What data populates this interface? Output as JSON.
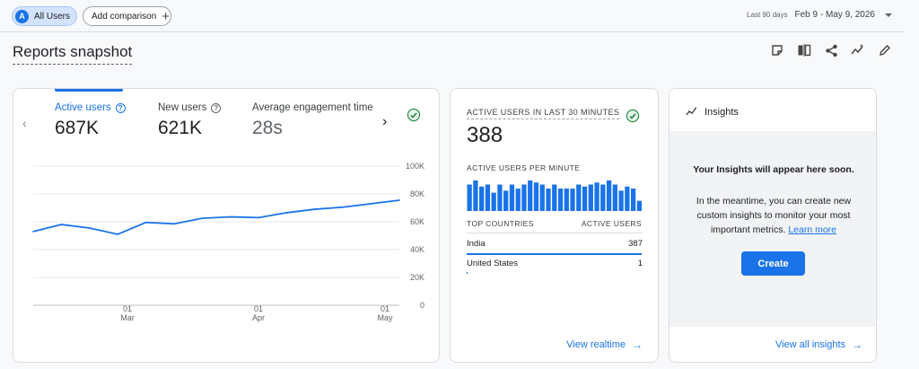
{
  "header": {
    "segment_avatar": "A",
    "segment_label": "All Users",
    "add_comparison": "Add comparison",
    "date_range_label": "Last 90 days",
    "date_range_value": "Feb 9 - May 9, 2026"
  },
  "page_title": "Reports snapshot",
  "toolbar_icons": [
    "annotation-icon",
    "compare-icon",
    "share-icon",
    "insights-icon",
    "edit-icon"
  ],
  "metrics": [
    {
      "label": "Active users",
      "value": "687K"
    },
    {
      "label": "New users",
      "value": "621K"
    },
    {
      "label": "Average engagement time p",
      "value": "28s"
    }
  ],
  "help_glyph": "?",
  "chart_data": {
    "type": "line",
    "x": [
      0,
      1,
      2,
      3,
      4,
      5,
      6,
      7,
      8,
      9,
      10,
      11,
      12,
      13
    ],
    "values": [
      53000,
      58000,
      55500,
      51000,
      59500,
      58500,
      62500,
      63500,
      63000,
      66500,
      69000,
      70500,
      73000,
      75500
    ],
    "ylim": [
      0,
      100000
    ],
    "yticks": [
      "100K",
      "80K",
      "60K",
      "40K",
      "20K",
      "0"
    ],
    "xticks": [
      {
        "day": "01",
        "month": "Mar"
      },
      {
        "day": "01",
        "month": "Apr"
      },
      {
        "day": "01",
        "month": "May"
      }
    ],
    "line_color": "#1a73e8",
    "grid": true
  },
  "realtime": {
    "title": "ACTIVE USERS IN LAST 30 MINUTES",
    "value": "388",
    "per_minute_label": "ACTIVE USERS PER MINUTE",
    "per_minute": [
      13,
      15,
      12,
      13,
      9,
      13,
      10,
      13,
      11,
      13,
      15,
      14,
      13,
      11,
      13,
      11,
      11,
      11,
      13,
      12,
      13,
      14,
      13,
      15,
      13,
      10,
      12,
      11,
      5
    ],
    "col_country": "TOP COUNTRIES",
    "col_users": "ACTIVE USERS",
    "rows": [
      {
        "country": "India",
        "users": "387",
        "share": 0.997
      },
      {
        "country": "United States",
        "users": "1",
        "share": 0.003
      }
    ],
    "link": "View realtime"
  },
  "insights": {
    "title": "Insights",
    "heading": "Your Insights will appear here soon.",
    "text_before": "In the meantime, you can create new custom insights to monitor your most important metrics. ",
    "learn_more": "Learn more",
    "create_button": "Create",
    "link": "View all insights"
  },
  "colors": {
    "accent": "#1a73e8",
    "success": "#188038"
  }
}
